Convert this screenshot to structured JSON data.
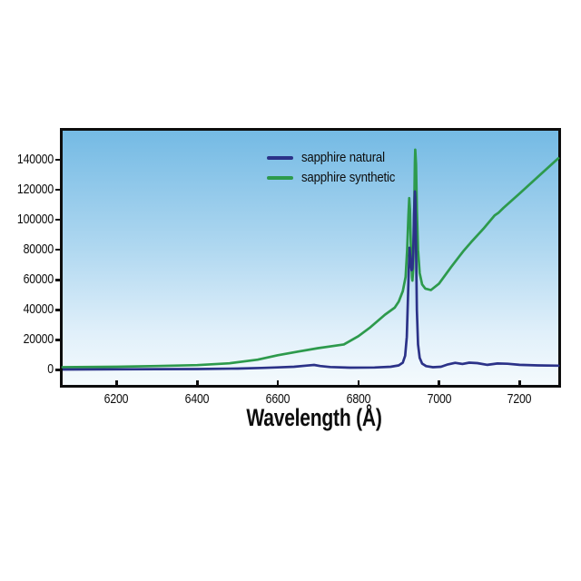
{
  "figure": {
    "background_color": "#ffffff",
    "text_color": "#0d0d0d"
  },
  "chart_data": {
    "type": "line",
    "title": "",
    "xlabel": "Wavelength (Å)",
    "ylabel": "",
    "grid": "off",
    "legend_position": "top-center-inside",
    "border_color": "#0d0d0d",
    "plot_bg_gradient": [
      "#74bae4",
      "#aed7f0",
      "#e1f0fa",
      "#f4fafd"
    ],
    "x_axis": {
      "min": 6066,
      "max": 7296,
      "ticks": [
        6200,
        6400,
        6600,
        6800,
        7000,
        7200
      ]
    },
    "y_axis": {
      "min": -10000,
      "max": 159400,
      "ticks": [
        0,
        20000,
        40000,
        60000,
        80000,
        100000,
        120000,
        140000
      ]
    },
    "series": [
      {
        "name": "sapphire natural",
        "color": "#2b3288",
        "points": [
          [
            6066,
            300
          ],
          [
            6200,
            400
          ],
          [
            6300,
            500
          ],
          [
            6400,
            600
          ],
          [
            6500,
            900
          ],
          [
            6560,
            1300
          ],
          [
            6600,
            1700
          ],
          [
            6640,
            2100
          ],
          [
            6672,
            2900
          ],
          [
            6690,
            3300
          ],
          [
            6705,
            2600
          ],
          [
            6730,
            1900
          ],
          [
            6780,
            1500
          ],
          [
            6840,
            1600
          ],
          [
            6880,
            2100
          ],
          [
            6900,
            3000
          ],
          [
            6910,
            4800
          ],
          [
            6916,
            9500
          ],
          [
            6920,
            22000
          ],
          [
            6923,
            48000
          ],
          [
            6925,
            67000
          ],
          [
            6927,
            81500
          ],
          [
            6929,
            74000
          ],
          [
            6932,
            66500
          ],
          [
            6934,
            67500
          ],
          [
            6936,
            78000
          ],
          [
            6938,
            104000
          ],
          [
            6940,
            119000
          ],
          [
            6941,
            115000
          ],
          [
            6943,
            82000
          ],
          [
            6945,
            40000
          ],
          [
            6948,
            17000
          ],
          [
            6952,
            8000
          ],
          [
            6958,
            4200
          ],
          [
            6968,
            2500
          ],
          [
            6985,
            1800
          ],
          [
            7005,
            2100
          ],
          [
            7022,
            3700
          ],
          [
            7040,
            4700
          ],
          [
            7058,
            4000
          ],
          [
            7075,
            4800
          ],
          [
            7095,
            4500
          ],
          [
            7120,
            3400
          ],
          [
            7145,
            4300
          ],
          [
            7170,
            4100
          ],
          [
            7200,
            3400
          ],
          [
            7245,
            3000
          ],
          [
            7296,
            2800
          ]
        ]
      },
      {
        "name": "sapphire synthetic",
        "color": "#2d9a4c",
        "points": [
          [
            6066,
            1800
          ],
          [
            6200,
            2100
          ],
          [
            6300,
            2600
          ],
          [
            6400,
            3200
          ],
          [
            6480,
            4400
          ],
          [
            6550,
            6800
          ],
          [
            6600,
            9800
          ],
          [
            6650,
            12200
          ],
          [
            6700,
            14500
          ],
          [
            6764,
            17000
          ],
          [
            6800,
            22500
          ],
          [
            6830,
            28500
          ],
          [
            6866,
            36800
          ],
          [
            6890,
            41500
          ],
          [
            6900,
            45500
          ],
          [
            6910,
            52500
          ],
          [
            6917,
            62000
          ],
          [
            6921,
            80000
          ],
          [
            6924,
            103000
          ],
          [
            6926,
            114500
          ],
          [
            6928,
            107000
          ],
          [
            6930,
            84000
          ],
          [
            6933,
            61500
          ],
          [
            6934,
            59500
          ],
          [
            6936,
            67000
          ],
          [
            6938,
            100000
          ],
          [
            6940,
            138000
          ],
          [
            6941,
            146800
          ],
          [
            6943,
            137000
          ],
          [
            6945,
            107000
          ],
          [
            6948,
            80000
          ],
          [
            6952,
            64500
          ],
          [
            6958,
            57000
          ],
          [
            6966,
            54200
          ],
          [
            6980,
            53200
          ],
          [
            7000,
            57500
          ],
          [
            7030,
            68500
          ],
          [
            7060,
            79000
          ],
          [
            7080,
            85200
          ],
          [
            7110,
            94000
          ],
          [
            7138,
            103000
          ],
          [
            7148,
            104800
          ],
          [
            7160,
            108000
          ],
          [
            7200,
            117600
          ],
          [
            7250,
            129800
          ],
          [
            7296,
            141000
          ]
        ]
      }
    ]
  }
}
